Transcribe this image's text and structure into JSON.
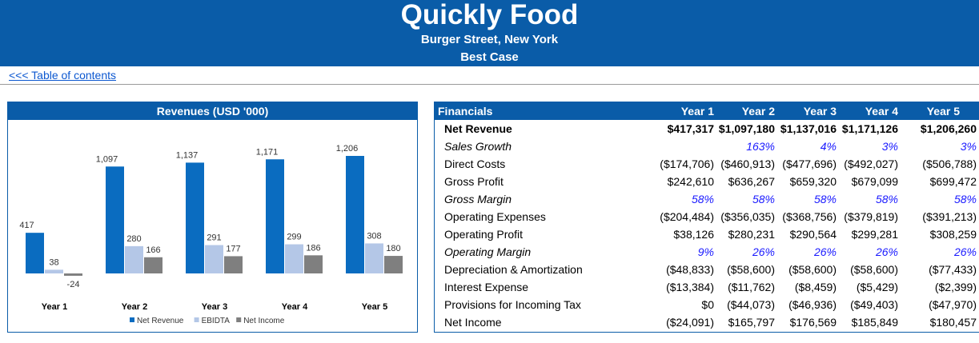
{
  "header": {
    "title": "Quickly Food",
    "subtitle": "Burger Street, New York",
    "scenario": "Best Case"
  },
  "toc_link": "<<< Table of contents",
  "colors": {
    "net_revenue": "#0a6cc0",
    "ebitda": "#b4c7e7",
    "net_income": "#7f7f7f",
    "accent": "#0a5ca8"
  },
  "chart_data": {
    "type": "bar",
    "title": "Revenues (USD '000)",
    "categories": [
      "Year 1",
      "Year 2",
      "Year 3",
      "Year 4",
      "Year 5"
    ],
    "series": [
      {
        "name": "Net Revenue",
        "values": [
          417,
          1097,
          1137,
          1171,
          1206
        ],
        "labels": [
          "417",
          "1,097",
          "1,137",
          "1,171",
          "1,206"
        ]
      },
      {
        "name": "EBIDTA",
        "values": [
          38,
          280,
          291,
          299,
          308
        ],
        "labels": [
          "38",
          "280",
          "291",
          "299",
          "308"
        ]
      },
      {
        "name": "Net Income",
        "values": [
          -24,
          166,
          177,
          186,
          180
        ],
        "labels": [
          "-24",
          "166",
          "177",
          "186",
          "180"
        ]
      }
    ],
    "xlabel": "",
    "ylabel": "",
    "ylim": [
      -60,
      1300
    ],
    "grid": false,
    "legend": "bottom"
  },
  "financials": {
    "header_label": "Financials",
    "years": [
      "Year 1",
      "Year 2",
      "Year 3",
      "Year 4",
      "Year 5"
    ],
    "rows": [
      {
        "label": "Net Revenue",
        "style": "bold",
        "values": [
          "$417,317",
          "$1,097,180",
          "$1,137,016",
          "$1,171,126",
          "$1,206,260"
        ]
      },
      {
        "label": "Sales Growth",
        "style": "pct",
        "values": [
          "",
          "163%",
          "4%",
          "3%",
          "3%"
        ]
      },
      {
        "label": "Direct Costs",
        "style": "normal",
        "values": [
          "($174,706)",
          "($460,913)",
          "($477,696)",
          "($492,027)",
          "($506,788)"
        ]
      },
      {
        "label": "Gross Profit",
        "style": "normal",
        "values": [
          "$242,610",
          "$636,267",
          "$659,320",
          "$679,099",
          "$699,472"
        ]
      },
      {
        "label": "Gross Margin",
        "style": "pct",
        "values": [
          "58%",
          "58%",
          "58%",
          "58%",
          "58%"
        ]
      },
      {
        "label": "Operating Expenses",
        "style": "normal",
        "values": [
          "($204,484)",
          "($356,035)",
          "($368,756)",
          "($379,819)",
          "($391,213)"
        ]
      },
      {
        "label": "Operating Profit",
        "style": "normal",
        "values": [
          "$38,126",
          "$280,231",
          "$290,564",
          "$299,281",
          "$308,259"
        ]
      },
      {
        "label": "Operating Margin",
        "style": "pct",
        "values": [
          "9%",
          "26%",
          "26%",
          "26%",
          "26%"
        ]
      },
      {
        "label": "Depreciation & Amortization",
        "style": "normal",
        "values": [
          "($48,833)",
          "($58,600)",
          "($58,600)",
          "($58,600)",
          "($77,433)"
        ]
      },
      {
        "label": "Interest Expense",
        "style": "normal",
        "values": [
          "($13,384)",
          "($11,762)",
          "($8,459)",
          "($5,429)",
          "($2,399)"
        ]
      },
      {
        "label": "Provisions for Incoming Tax",
        "style": "normal",
        "values": [
          "$0",
          "($44,073)",
          "($46,936)",
          "($49,403)",
          "($47,970)"
        ]
      },
      {
        "label": "Net Income",
        "style": "normal",
        "values": [
          "($24,091)",
          "$165,797",
          "$176,569",
          "$185,849",
          "$180,457"
        ]
      }
    ]
  }
}
